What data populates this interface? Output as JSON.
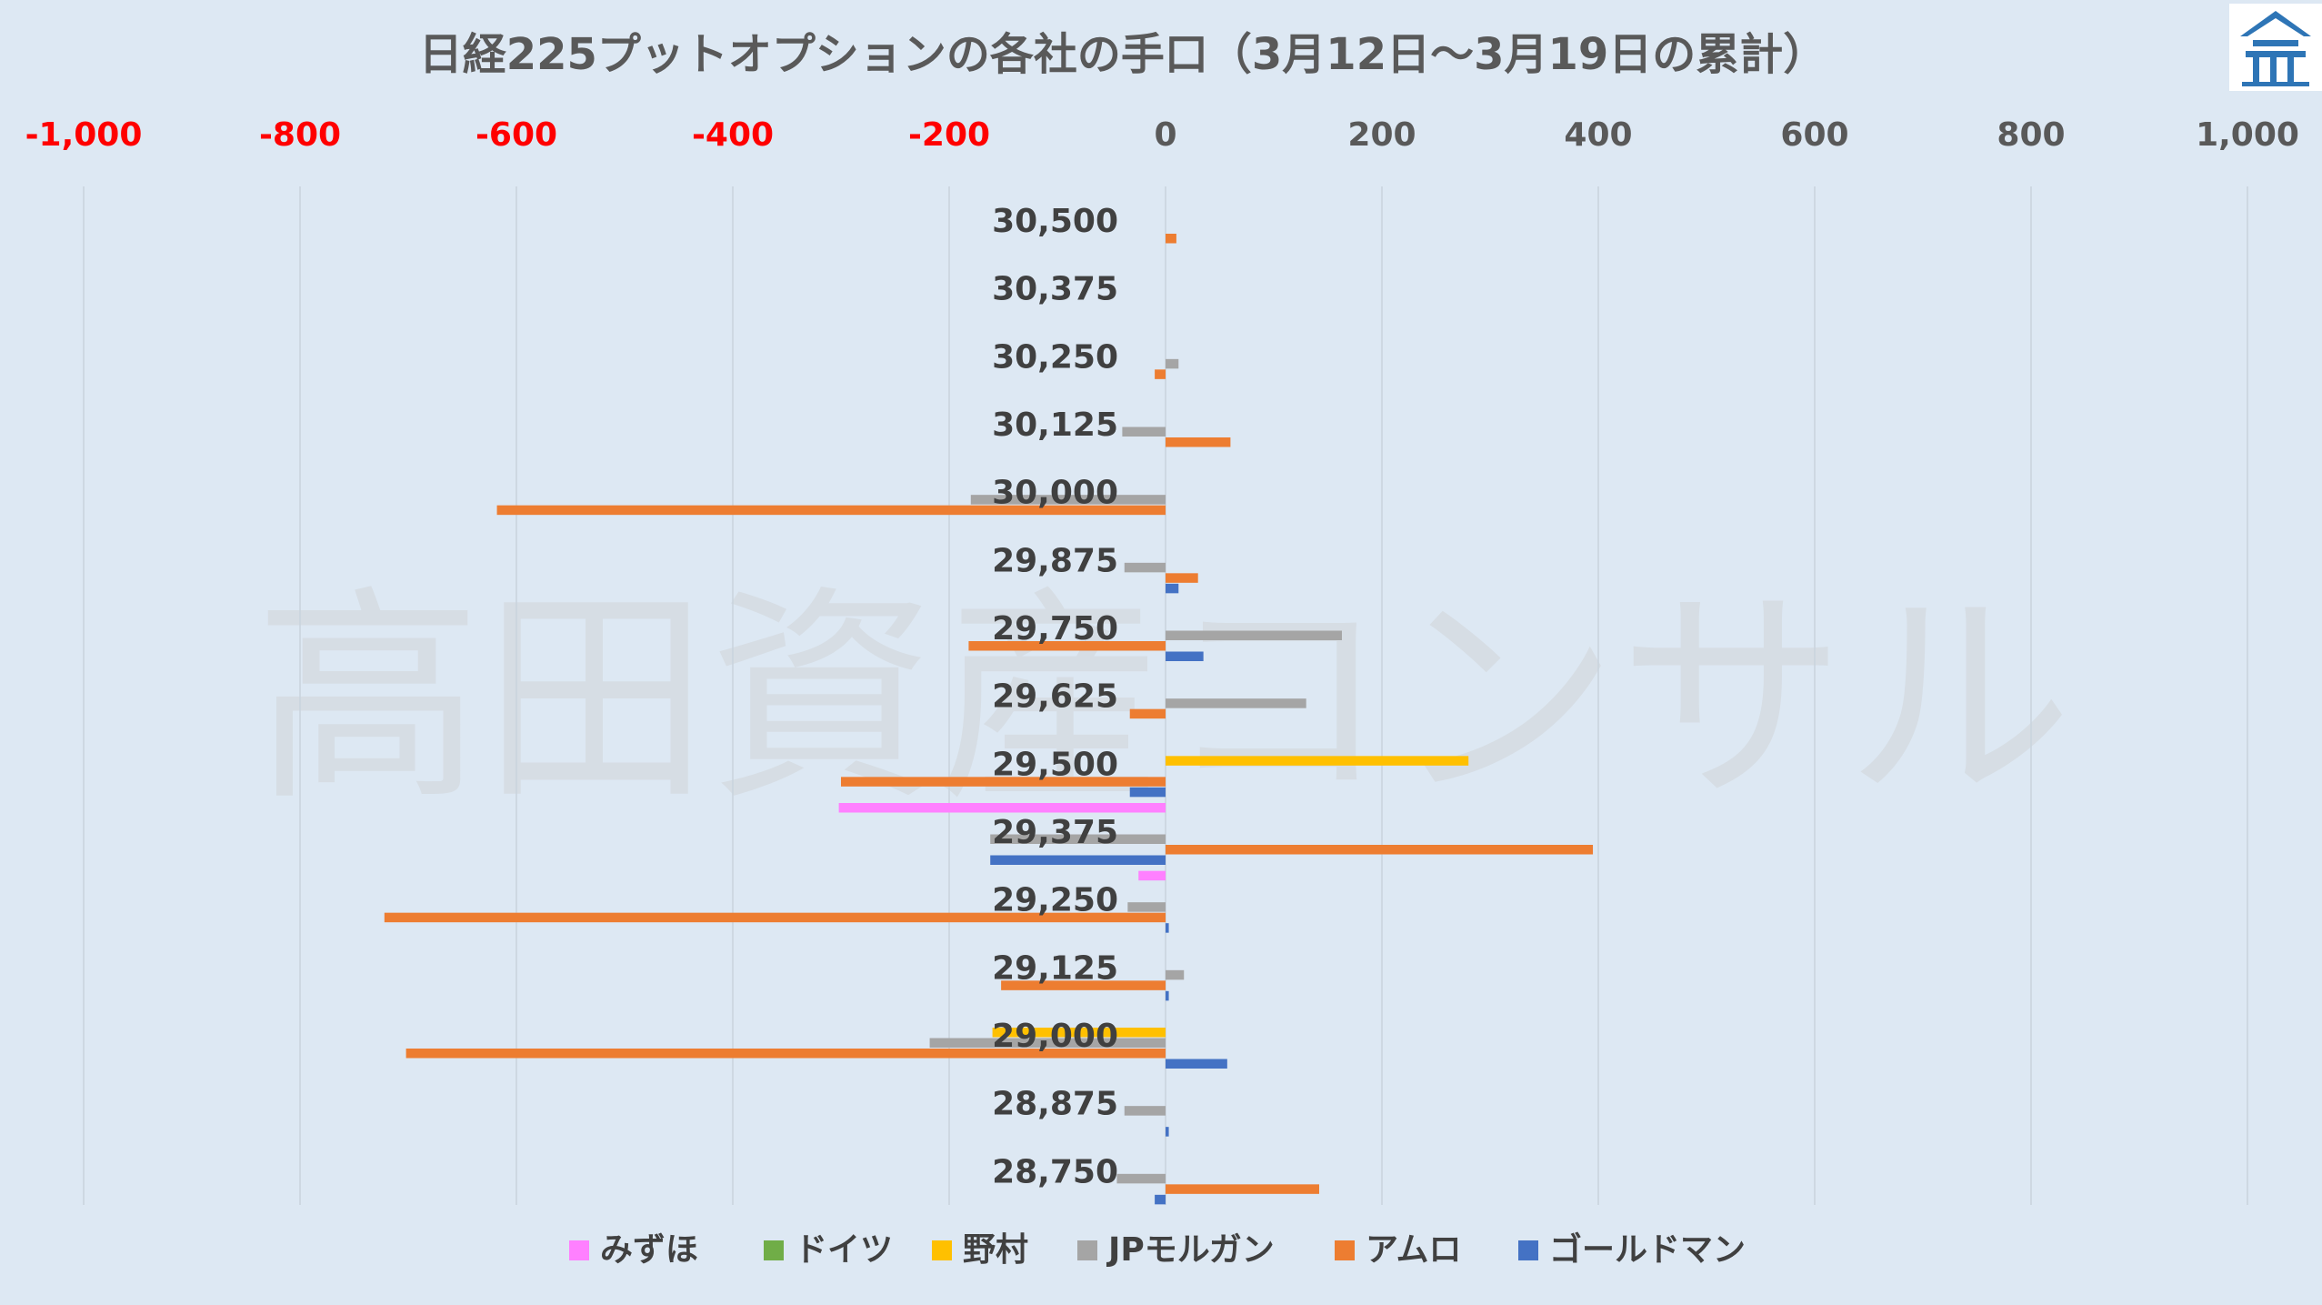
{
  "title": "日経225プットオプションの各社の手口（3月12日～3月19日の累計）",
  "watermark": "高田資産コンサル",
  "logo_icon": "house-logo-icon",
  "colors": {
    "background": "#dde8f3",
    "negative_tick": "#ff0000",
    "positive_tick": "#595959",
    "grid": "#c9d3dd"
  },
  "chart_data": {
    "type": "bar",
    "orientation": "horizontal",
    "title": "日経225プットオプションの各社の手口（3月12日～3月19日の累計）",
    "xlim": [
      -1000,
      1000
    ],
    "x_ticks": [
      -1000,
      -800,
      -600,
      -400,
      -200,
      0,
      200,
      400,
      600,
      800,
      1000
    ],
    "x_tick_labels": [
      "-1,000",
      "-800",
      "-600",
      "-400",
      "-200",
      "0",
      "200",
      "400",
      "600",
      "800",
      "1,000"
    ],
    "grid": "vertical",
    "legend_position": "bottom",
    "categories": [
      "30,500",
      "30,375",
      "30,250",
      "30,125",
      "30,000",
      "29,875",
      "29,750",
      "29,625",
      "29,500",
      "29,375",
      "29,250",
      "29,125",
      "29,000",
      "28,875",
      "28,750"
    ],
    "series": [
      {
        "name": "みずほ",
        "color": "#ff80ff",
        "values": [
          0,
          0,
          0,
          0,
          0,
          0,
          0,
          0,
          0,
          -302,
          -25,
          0,
          0,
          0,
          0
        ]
      },
      {
        "name": "ドイツ",
        "color": "#70ad47",
        "values": [
          0,
          0,
          0,
          0,
          0,
          0,
          0,
          0,
          0,
          0,
          0,
          0,
          0,
          0,
          0
        ]
      },
      {
        "name": "野村",
        "color": "#ffc000",
        "values": [
          0,
          0,
          0,
          0,
          0,
          0,
          0,
          0,
          280,
          0,
          0,
          0,
          -160,
          0,
          0
        ]
      },
      {
        "name": "JPモルガン",
        "color": "#a5a5a5",
        "values": [
          0,
          0,
          12,
          -40,
          -180,
          -38,
          163,
          130,
          0,
          -162,
          -35,
          17,
          -218,
          -38,
          -45
        ]
      },
      {
        "name": "アムロ",
        "color": "#ed7d31",
        "values": [
          10,
          0,
          -10,
          60,
          -618,
          30,
          -182,
          -33,
          -300,
          395,
          -722,
          -152,
          -702,
          0,
          142
        ]
      },
      {
        "name": "ゴールドマン",
        "color": "#4472c4",
        "values": [
          0,
          0,
          0,
          0,
          0,
          12,
          35,
          0,
          -33,
          -162,
          3,
          3,
          57,
          3,
          -10
        ]
      }
    ]
  }
}
